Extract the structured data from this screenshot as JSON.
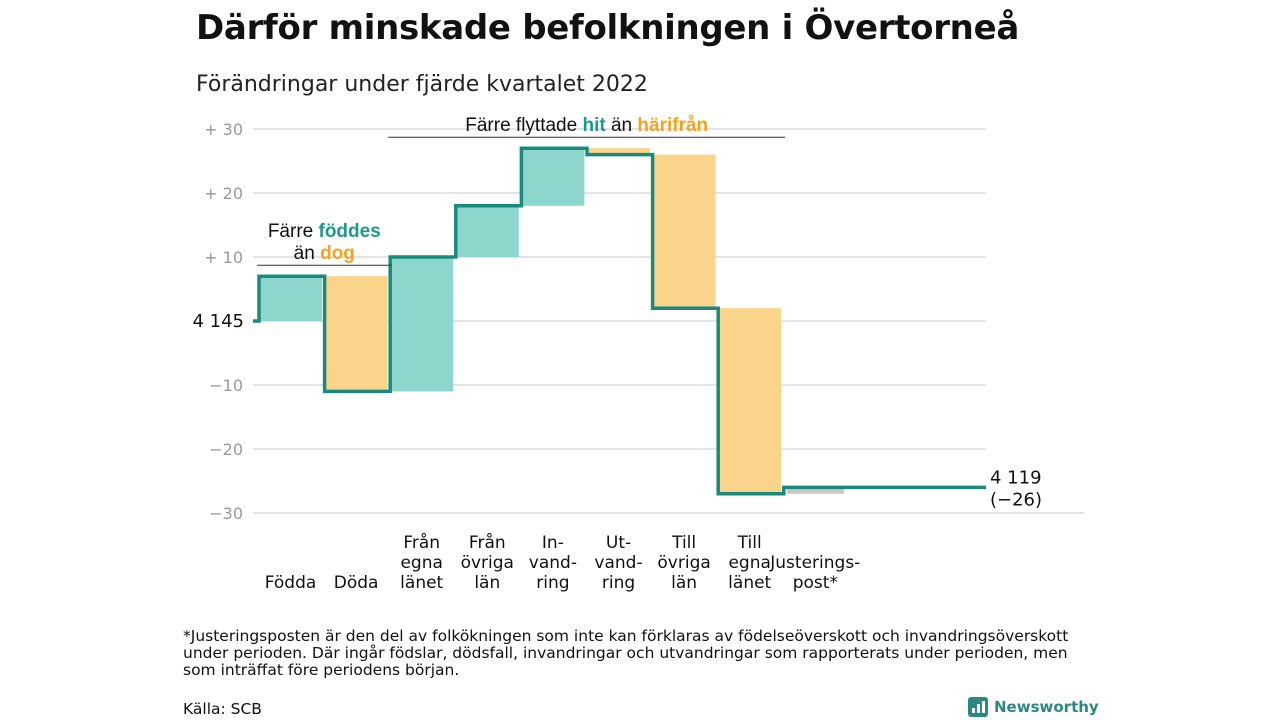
{
  "title": "Därför minskade befolkningen i Övertorneå",
  "subtitle": "Förändringar under fjärde kvartalet 2022",
  "footnote": "*Justeringsposten är den del av folkökningen som inte kan förklaras av födelseöverskott och invandringsöverskott under perioden. Där ingår födslar, dödsfall, invandringar och utvandringar som rapporterats under perioden, men som inträffat före periodens början.",
  "source": "Källa: SCB",
  "brand": "Newsworthy",
  "colors": {
    "increase": "#8dd6cc",
    "decrease": "#fad48b",
    "adjust": "#c8c8c8",
    "line": "#1a8a7d",
    "teal_text": "#1a9a8c",
    "orange_text": "#f5a21f"
  },
  "chart_data": {
    "type": "waterfall",
    "start": {
      "label": "4 145",
      "value": 0
    },
    "end": {
      "label": "4 119",
      "change_label": "(−26)",
      "value": -26
    },
    "yticks": [
      "+ 30",
      "+ 20",
      "+ 10",
      "",
      "−10",
      "−20",
      "−30"
    ],
    "ytick_values": [
      30,
      20,
      10,
      0,
      -10,
      -20,
      -30
    ],
    "ylim": [
      -31,
      31
    ],
    "steps": [
      {
        "label_lines": [
          "Födda"
        ],
        "from": 0,
        "to": 7,
        "kind": "increase"
      },
      {
        "label_lines": [
          "Döda"
        ],
        "from": 7,
        "to": -11,
        "kind": "decrease"
      },
      {
        "label_lines": [
          "Från",
          "egna",
          "länet"
        ],
        "from": -11,
        "to": 10,
        "kind": "increase"
      },
      {
        "label_lines": [
          "Från",
          "övriga",
          "län"
        ],
        "from": 10,
        "to": 18,
        "kind": "increase"
      },
      {
        "label_lines": [
          "In-",
          "vand-",
          "ring"
        ],
        "from": 18,
        "to": 27,
        "kind": "increase"
      },
      {
        "label_lines": [
          "Ut-",
          "vand-",
          "ring"
        ],
        "from": 27,
        "to": 26,
        "kind": "decrease"
      },
      {
        "label_lines": [
          "Till",
          "övriga",
          "län"
        ],
        "from": 26,
        "to": 2,
        "kind": "decrease"
      },
      {
        "label_lines": [
          "Till",
          "egna",
          "länet"
        ],
        "from": 2,
        "to": -27,
        "kind": "decrease"
      },
      {
        "label_lines": [
          "Justerings-",
          "post*"
        ],
        "from": -27,
        "to": -26,
        "kind": "adjust"
      }
    ],
    "annotations": [
      {
        "lines": [
          [
            {
              "text": "Färre ",
              "color": "dark"
            },
            {
              "text": "föddes",
              "color": "teal"
            }
          ],
          [
            {
              "text": "än ",
              "color": "dark"
            },
            {
              "text": "dog",
              "color": "orange"
            }
          ]
        ],
        "step_from": 0,
        "step_to": 1
      },
      {
        "lines": [
          [
            {
              "text": "Färre flyttade ",
              "color": "dark"
            },
            {
              "text": "hit",
              "color": "teal"
            },
            {
              "text": " än ",
              "color": "dark"
            },
            {
              "text": "härifrån",
              "color": "orange"
            }
          ]
        ],
        "step_from": 2,
        "step_to": 7
      }
    ]
  }
}
